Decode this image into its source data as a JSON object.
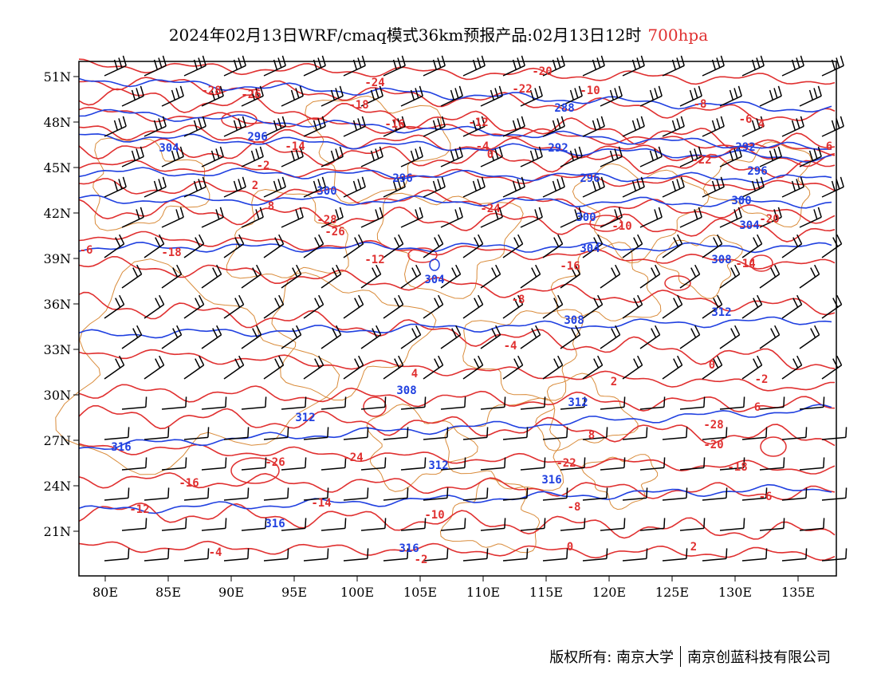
{
  "title": {
    "main": "2024年02月13日WRF/cmaq模式36km预报产品:02月13日12时",
    "level": "700hpa"
  },
  "axes": {
    "lon_labels": [
      "80E",
      "85E",
      "90E",
      "95E",
      "100E",
      "105E",
      "110E",
      "115E",
      "120E",
      "125E",
      "130E",
      "135E"
    ],
    "lat_labels": [
      "51N",
      "48N",
      "45N",
      "42N",
      "39N",
      "36N",
      "33N",
      "30N",
      "27N",
      "24N",
      "21N"
    ]
  },
  "colors": {
    "temperature_contour": "#e03030",
    "height_contour": "#2040e0",
    "boundary": "#d98b3a",
    "wind_barb": "#000000",
    "level_text": "#e03030"
  },
  "height_labels": [
    "288",
    "292",
    "296",
    "300",
    "304",
    "308",
    "312",
    "316"
  ],
  "temperature_labels": [
    "-28",
    "-26",
    "-24",
    "-22",
    "-20",
    "-18",
    "-16",
    "-14",
    "-12",
    "-10",
    "-8",
    "-6",
    "-4",
    "-2",
    "0",
    "2",
    "4",
    "6",
    "8"
  ],
  "footer": {
    "copyright": "版权所有: 南京大学",
    "company": "南京创蓝科技有限公司"
  }
}
